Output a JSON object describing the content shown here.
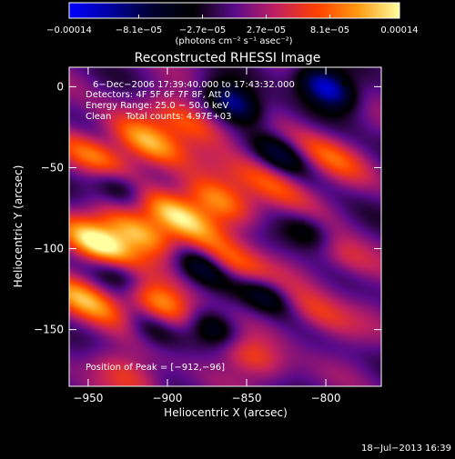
{
  "chart_data": {
    "type": "heatmap",
    "title": "Reconstructed RHESSI Image",
    "xlabel": "Heliocentric X (arcsec)",
    "ylabel": "Heliocentric Y (arcsec)",
    "xlim": [
      -962,
      -765
    ],
    "ylim": [
      -185,
      12
    ],
    "x_ticks": [
      -950,
      -900,
      -850,
      -800
    ],
    "x_tick_labels": [
      "−950",
      "−900",
      "−850",
      "−800"
    ],
    "y_ticks": [
      0,
      -50,
      -100,
      -150
    ],
    "y_tick_labels": [
      "0",
      "−50",
      "−100",
      "−150"
    ],
    "colorbar": {
      "min": -0.00014,
      "max": 0.00014,
      "tick_values": [
        -0.00014,
        -8.1e-05,
        -2.7e-05,
        2.7e-05,
        8.1e-05,
        0.00014
      ],
      "tick_labels": [
        "−0.00014",
        "−8.1e−05",
        "−2.7e−05",
        "2.7e−05",
        "8.1e−05",
        "0.00014"
      ],
      "units": "(photons cm⁻² s⁻¹ asec⁻²)",
      "colors": [
        "#0000ff",
        "#0000a0",
        "#000030",
        "#000000",
        "#5a0a8a",
        "#c02060",
        "#ff4000",
        "#ff9a10",
        "#ffffa0"
      ]
    },
    "annotations": [
      "6−Dec−2006 17:39:40.000 to 17:43:32.000",
      "Detectors: 4F 5F 6F 7F 8F, Att 0",
      "Energy Range: 25.0 − 50.0 keV",
      "Clean     Total counts: 4.97E+03"
    ],
    "peak_label": "Position of Peak = [−912,−96]",
    "peak": {
      "x": -912,
      "y": -96
    },
    "dark_spot": {
      "x": -788,
      "y": 2
    },
    "bright_ridges": [
      {
        "x": -942,
        "y": -98,
        "intensity": 1.0
      },
      {
        "x": -918,
        "y": -90,
        "intensity": 0.95
      },
      {
        "x": -895,
        "y": -79,
        "intensity": 0.85
      },
      {
        "x": -868,
        "y": -70,
        "intensity": 0.75
      },
      {
        "x": -947,
        "y": -42,
        "intensity": 0.7
      },
      {
        "x": -912,
        "y": -35,
        "intensity": 0.75
      },
      {
        "x": -885,
        "y": -22,
        "intensity": 0.65
      },
      {
        "x": -950,
        "y": -132,
        "intensity": 0.8
      },
      {
        "x": -905,
        "y": -134,
        "intensity": 0.75
      },
      {
        "x": -856,
        "y": -110,
        "intensity": 0.6
      },
      {
        "x": -832,
        "y": -60,
        "intensity": 0.55
      },
      {
        "x": -800,
        "y": -42,
        "intensity": 0.5
      },
      {
        "x": -850,
        "y": -165,
        "intensity": 0.55
      },
      {
        "x": -805,
        "y": -140,
        "intensity": 0.5
      },
      {
        "x": -790,
        "y": -103,
        "intensity": 0.45
      },
      {
        "x": -925,
        "y": -178,
        "intensity": 0.45
      }
    ],
    "negative_wells": [
      {
        "x": -800,
        "y": 0,
        "intensity": -0.95
      },
      {
        "x": -858,
        "y": -10,
        "intensity": -0.8
      },
      {
        "x": -930,
        "y": -62,
        "intensity": -0.6
      },
      {
        "x": -880,
        "y": -110,
        "intensity": -0.55
      },
      {
        "x": -838,
        "y": -128,
        "intensity": -0.55
      },
      {
        "x": -810,
        "y": -90,
        "intensity": -0.55
      },
      {
        "x": -930,
        "y": -115,
        "intensity": -0.5
      },
      {
        "x": -870,
        "y": -150,
        "intensity": -0.6
      },
      {
        "x": -830,
        "y": -40,
        "intensity": -0.5
      },
      {
        "x": -910,
        "y": -150,
        "intensity": -0.4
      }
    ],
    "grid": false
  },
  "footer": {
    "timestamp": "18−Jul−2013 16:39"
  }
}
